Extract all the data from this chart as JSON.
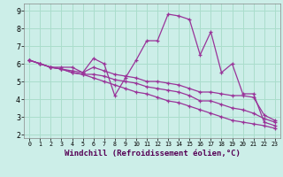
{
  "background_color": "#cceee8",
  "grid_color": "#aaddcc",
  "line_color": "#993399",
  "marker": "+",
  "xlabel": "Windchill (Refroidissement éolien,°C)",
  "xlabel_fontsize": 6.5,
  "xlim": [
    -0.5,
    23.5
  ],
  "ylim": [
    1.8,
    9.4
  ],
  "yticks": [
    2,
    3,
    4,
    5,
    6,
    7,
    8,
    9
  ],
  "xticks": [
    0,
    1,
    2,
    3,
    4,
    5,
    6,
    7,
    8,
    9,
    10,
    11,
    12,
    13,
    14,
    15,
    16,
    17,
    18,
    19,
    20,
    21,
    22,
    23
  ],
  "series": [
    [
      6.2,
      6.0,
      5.8,
      5.8,
      5.8,
      5.5,
      6.3,
      6.0,
      4.2,
      5.2,
      6.2,
      7.3,
      7.3,
      8.8,
      8.7,
      8.5,
      6.5,
      7.8,
      5.5,
      6.0,
      4.3,
      4.3,
      2.7,
      2.5
    ],
    [
      6.2,
      6.0,
      5.8,
      5.7,
      5.6,
      5.5,
      5.8,
      5.6,
      5.4,
      5.3,
      5.2,
      5.0,
      5.0,
      4.9,
      4.8,
      4.6,
      4.4,
      4.4,
      4.3,
      4.2,
      4.2,
      4.1,
      3.1,
      2.8
    ],
    [
      6.2,
      6.0,
      5.8,
      5.7,
      5.5,
      5.4,
      5.4,
      5.3,
      5.1,
      5.0,
      4.9,
      4.7,
      4.6,
      4.5,
      4.4,
      4.2,
      3.9,
      3.9,
      3.7,
      3.5,
      3.4,
      3.2,
      2.9,
      2.7
    ],
    [
      6.2,
      6.0,
      5.8,
      5.7,
      5.5,
      5.4,
      5.2,
      5.0,
      4.8,
      4.6,
      4.4,
      4.3,
      4.1,
      3.9,
      3.8,
      3.6,
      3.4,
      3.2,
      3.0,
      2.8,
      2.7,
      2.6,
      2.5,
      2.35
    ]
  ]
}
